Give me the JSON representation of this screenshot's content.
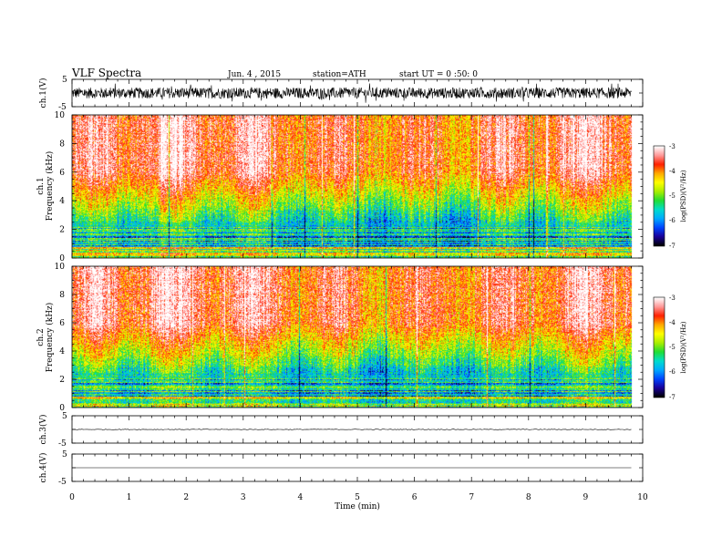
{
  "header": {
    "title": "VLF  Spectra",
    "date": "Jun. 4  , 2015",
    "station": "station=ATH",
    "start_ut": "start  UT  =   0  :50: 0"
  },
  "chart_data": [
    {
      "type": "line",
      "panel": "ch1-waveform",
      "ylabel": "ch.1(V)",
      "ylim": [
        -5,
        5
      ],
      "yticks": [
        "5",
        "-5"
      ],
      "xlim": [
        0,
        10
      ],
      "series": [
        {
          "values_envelope": [
            -2.0,
            2.0
          ],
          "mean": 0.0,
          "data_end_min": 9.8
        }
      ]
    },
    {
      "type": "heatmap",
      "panel": "ch1-spectrogram",
      "ylabel_top": "ch.1",
      "ylabel": "Frequency (kHz)",
      "ylim": [
        0,
        10
      ],
      "yticks": [
        "0",
        "2",
        "4",
        "6",
        "8",
        "10"
      ],
      "xlim": [
        0,
        10
      ],
      "data_end_min": 9.8,
      "colorbar": {
        "label": "log(PSD)(V²/Hz)",
        "range": [
          -7,
          -3
        ],
        "ticks": [
          "-3",
          "-4",
          "-5",
          "-6",
          "-7"
        ]
      },
      "description_values": {
        "above_5kHz_logPSD": -3.8,
        "3to4kHz_logPSD": -5.5,
        "below_2kHz_logPSD": -6.0
      }
    },
    {
      "type": "heatmap",
      "panel": "ch2-spectrogram",
      "ylabel_top": "ch.2",
      "ylabel": "Frequency (kHz)",
      "ylim": [
        0,
        10
      ],
      "yticks": [
        "0",
        "2",
        "4",
        "6",
        "8",
        "10"
      ],
      "xlim": [
        0,
        10
      ],
      "data_end_min": 9.8,
      "colorbar": {
        "label": "log(PSD)(V²/Hz)",
        "range": [
          -7,
          -3
        ],
        "ticks": [
          "-3",
          "-4",
          "-5",
          "-6",
          "-7"
        ]
      },
      "description_values": {
        "above_5kHz_logPSD": -3.8,
        "3to4kHz_logPSD": -5.3,
        "below_2kHz_logPSD": -6.0
      }
    },
    {
      "type": "line",
      "panel": "ch3-waveform",
      "ylabel": "ch.3(V)",
      "ylim": [
        -5,
        5
      ],
      "yticks": [
        "5",
        "-5"
      ],
      "xlim": [
        0,
        10
      ],
      "series": [
        {
          "mean": 0.0,
          "data_end_min": 9.8
        }
      ]
    },
    {
      "type": "line",
      "panel": "ch4-waveform",
      "ylabel": "ch.4(V)",
      "ylim": [
        -5,
        5
      ],
      "yticks": [
        "5",
        "-5"
      ],
      "xlim": [
        0,
        10
      ],
      "series": [
        {
          "mean": 0.0,
          "data_end_min": 9.8
        }
      ]
    }
  ],
  "xaxis": {
    "label": "Time  (min)",
    "ticks": [
      "0",
      "1",
      "2",
      "3",
      "4",
      "5",
      "6",
      "7",
      "8",
      "9",
      "10"
    ]
  },
  "colors": {
    "colormap": [
      "#000000",
      "#1a0099",
      "#0044ff",
      "#00aaff",
      "#00ddcc",
      "#22dd33",
      "#aaee00",
      "#ffff00",
      "#ffaa00",
      "#ff2000",
      "#ff9999",
      "#ffffff"
    ],
    "trace": "#000000"
  }
}
